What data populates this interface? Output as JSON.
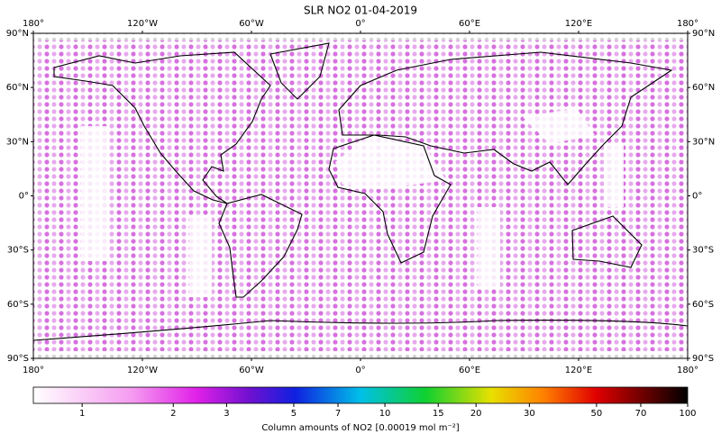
{
  "title": "SLR NO2 01-04-2019",
  "map": {
    "xlim": [
      -180,
      180
    ],
    "ylim": [
      -90,
      90
    ],
    "xticks": [
      {
        "value": -180,
        "label": "180°"
      },
      {
        "value": -120,
        "label": "120°W"
      },
      {
        "value": -60,
        "label": "60°W"
      },
      {
        "value": 0,
        "label": "0°"
      },
      {
        "value": 60,
        "label": "60°E"
      },
      {
        "value": 120,
        "label": "120°E"
      },
      {
        "value": 180,
        "label": "180°"
      }
    ],
    "yticks": [
      {
        "value": 90,
        "label": "90°N"
      },
      {
        "value": 60,
        "label": "60°N"
      },
      {
        "value": 30,
        "label": "30°N"
      },
      {
        "value": 0,
        "label": "0°"
      },
      {
        "value": -30,
        "label": "30°S"
      },
      {
        "value": -60,
        "label": "60°S"
      },
      {
        "value": -90,
        "label": "90°S"
      }
    ]
  },
  "colorbar": {
    "scale": "log",
    "lim": [
      0.69,
      100
    ],
    "ticks": [
      1,
      2,
      3,
      5,
      7,
      10,
      15,
      20,
      30,
      50,
      70,
      100
    ],
    "label": "Column amounts of NO2 [0.00019 mol m⁻²]"
  }
}
